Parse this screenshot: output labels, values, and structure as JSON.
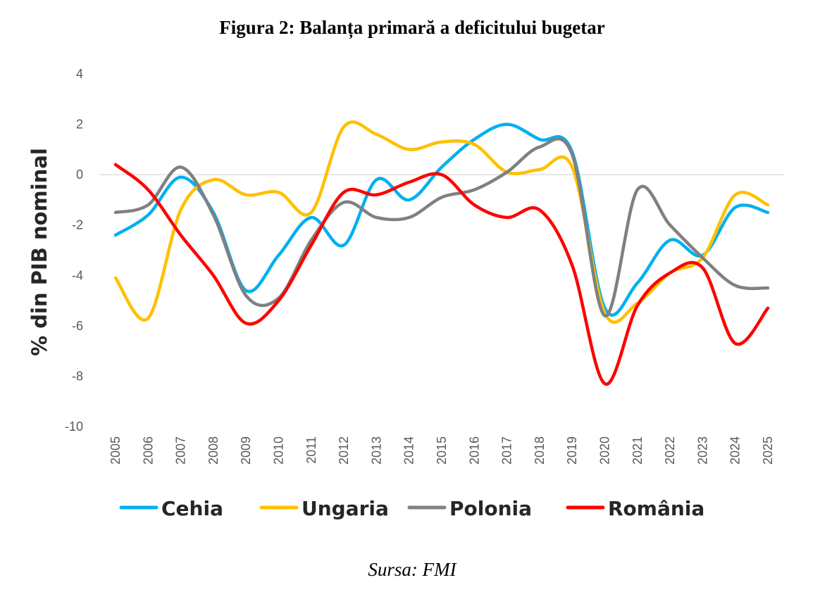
{
  "chart_data": {
    "type": "line",
    "title": "Figura 2: Balanța primară a deficitului bugetar",
    "xlabel": "",
    "ylabel": "% din PIB nominal",
    "source": "Sursa: FMI",
    "ylim": [
      -10,
      4
    ],
    "yticks": [
      4,
      2,
      0,
      -2,
      -4,
      -6,
      -8,
      -10
    ],
    "grid": false,
    "smoothed": true,
    "legend_position": "bottom",
    "x": [
      "2005",
      "2006",
      "2007",
      "2008",
      "2009",
      "2010",
      "2011",
      "2012",
      "2013",
      "2014",
      "2015",
      "2016",
      "2017",
      "2018",
      "2019",
      "2020",
      "2021",
      "2022",
      "2023",
      "2024",
      "2025"
    ],
    "series": [
      {
        "name": "Cehia",
        "color": "#00B0F0",
        "values": [
          -2.4,
          -1.6,
          -0.1,
          -1.5,
          -4.6,
          -3.2,
          -1.7,
          -2.8,
          -0.2,
          -1.0,
          0.3,
          1.4,
          2.0,
          1.4,
          0.9,
          -5.3,
          -4.3,
          -2.6,
          -3.2,
          -1.3,
          -1.5
        ]
      },
      {
        "name": "Ungaria",
        "color": "#FFC000",
        "values": [
          -4.1,
          -5.7,
          -1.4,
          -0.2,
          -0.8,
          -0.7,
          -1.5,
          1.9,
          1.6,
          1.0,
          1.3,
          1.2,
          0.1,
          0.2,
          0.3,
          -5.5,
          -5.1,
          -3.9,
          -3.3,
          -0.8,
          -1.2
        ]
      },
      {
        "name": "Polonia",
        "color": "#808080",
        "values": [
          -1.5,
          -1.2,
          0.3,
          -1.6,
          -4.8,
          -4.9,
          -2.6,
          -1.1,
          -1.7,
          -1.7,
          -0.9,
          -0.6,
          0.1,
          1.1,
          0.8,
          -5.6,
          -0.6,
          -2.0,
          -3.3,
          -4.4,
          -4.5
        ]
      },
      {
        "name": "România",
        "color": "#FF0000",
        "values": [
          0.4,
          -0.6,
          -2.4,
          -4.0,
          -5.9,
          -5.0,
          -2.8,
          -0.7,
          -0.8,
          -0.3,
          0.0,
          -1.2,
          -1.7,
          -1.4,
          -3.6,
          -8.3,
          -5.2,
          -3.9,
          -3.7,
          -6.7,
          -5.3
        ]
      }
    ]
  }
}
